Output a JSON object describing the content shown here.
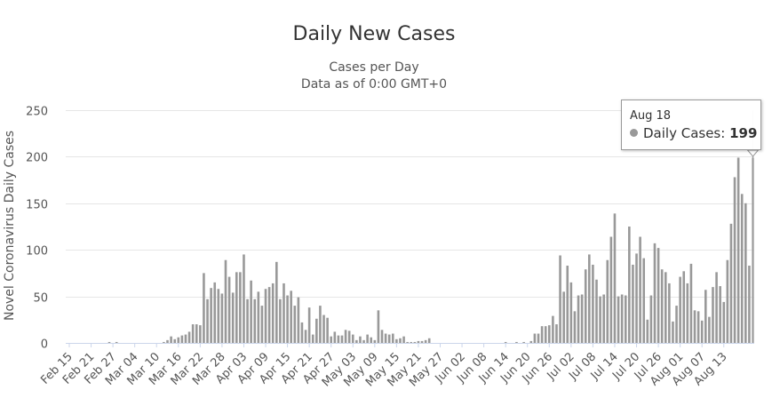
{
  "chart_data": {
    "type": "bar",
    "title": "Daily New Cases",
    "subtitle_lines": [
      "Cases per Day",
      "Data as of 0:00 GMT+0"
    ],
    "xlabel": "",
    "ylabel": "Novel Coronavirus Daily Cases",
    "ylim": [
      0,
      250
    ],
    "y_ticks": [
      0,
      50,
      100,
      150,
      200,
      250
    ],
    "grid": true,
    "x_tick_labels": [
      "Feb 15",
      "Feb 21",
      "Feb 27",
      "Mar 04",
      "Mar 10",
      "Mar 16",
      "Mar 22",
      "Mar 28",
      "Apr 03",
      "Apr 09",
      "Apr 15",
      "Apr 21",
      "Apr 27",
      "May 03",
      "May 09",
      "May 15",
      "May 21",
      "May 27",
      "Jun 02",
      "Jun 08",
      "Jun 14",
      "Jun 20",
      "Jun 26",
      "Jul 02",
      "Jul 08",
      "Jul 14",
      "Jul 20",
      "Jul 26",
      "Aug 01",
      "Aug 07",
      "Aug 13"
    ],
    "tick_every": 6,
    "first_date": "Feb 15",
    "last_date": "Aug 18",
    "series": [
      {
        "name": "Daily Cases",
        "color": "#999999",
        "values": [
          0,
          0,
          0,
          0,
          0,
          0,
          0,
          0,
          0,
          0,
          0,
          1,
          0,
          1,
          0,
          0,
          0,
          0,
          0,
          0,
          0,
          0,
          0,
          0,
          0,
          0,
          1,
          3,
          7,
          4,
          6,
          8,
          9,
          12,
          20,
          20,
          19,
          75,
          47,
          59,
          65,
          58,
          53,
          89,
          71,
          54,
          76,
          76,
          95,
          47,
          67,
          47,
          55,
          40,
          58,
          60,
          64,
          87,
          47,
          64,
          51,
          56,
          40,
          49,
          22,
          14,
          38,
          9,
          26,
          40,
          30,
          27,
          7,
          12,
          8,
          8,
          14,
          13,
          9,
          3,
          7,
          3,
          9,
          6,
          3,
          35,
          14,
          10,
          9,
          10,
          4,
          5,
          7,
          1,
          1,
          1,
          2,
          2,
          3,
          5,
          0,
          0,
          0,
          0,
          0,
          0,
          0,
          0,
          0,
          0,
          0,
          0,
          0,
          0,
          0,
          0,
          0,
          0,
          0,
          0,
          1,
          0,
          0,
          1,
          0,
          1,
          0,
          2,
          10,
          10,
          18,
          18,
          19,
          29,
          20,
          94,
          55,
          83,
          65,
          34,
          51,
          52,
          79,
          95,
          84,
          68,
          50,
          52,
          89,
          114,
          139,
          50,
          52,
          51,
          125,
          84,
          96,
          114,
          91,
          25,
          51,
          107,
          102,
          79,
          76,
          64,
          23,
          40,
          71,
          77,
          64,
          85,
          35,
          34,
          24,
          57,
          28,
          60,
          76,
          61,
          44,
          89,
          128,
          178,
          199,
          160,
          150,
          83,
          199
        ]
      }
    ]
  },
  "tooltip": {
    "date": "Aug 18",
    "series_label": "Daily Cases:",
    "value": "199"
  }
}
